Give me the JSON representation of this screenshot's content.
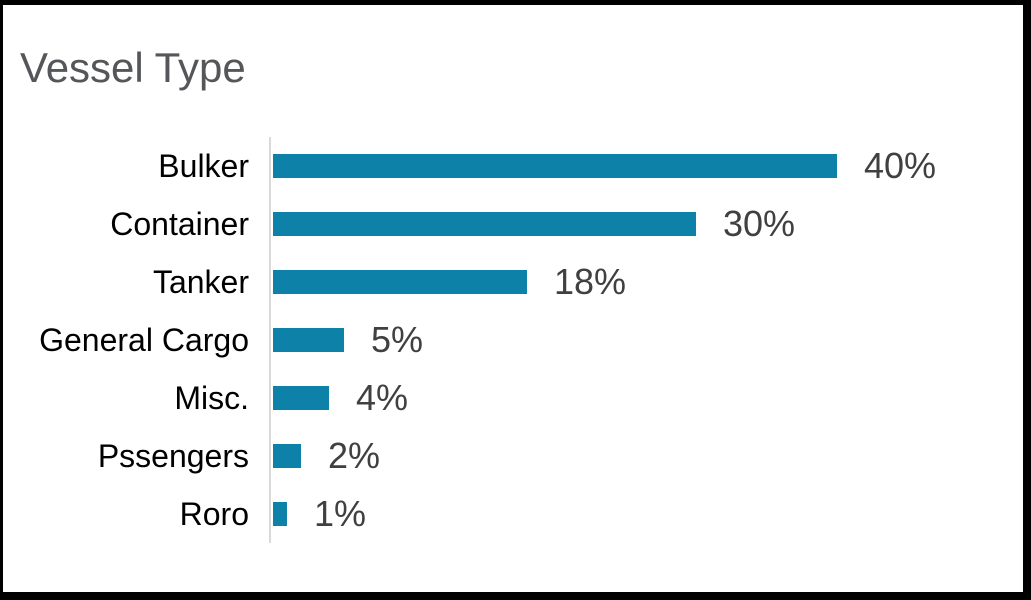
{
  "page": {
    "title": "Vessel Type"
  },
  "chart_data": {
    "type": "bar",
    "orientation": "horizontal",
    "title": "Vessel Type",
    "xlabel": "",
    "ylabel": "",
    "categories": [
      "Bulker",
      "Container",
      "Tanker",
      "General Cargo",
      "Misc.",
      "Pssengers",
      "Roro"
    ],
    "values": [
      40,
      30,
      18,
      5,
      4,
      2,
      1
    ],
    "value_labels": [
      "40%",
      "30%",
      "18%",
      "5%",
      "4%",
      "2%",
      "1%"
    ],
    "unit": "%",
    "xlim": [
      0,
      40
    ],
    "grid": false,
    "legend": false,
    "colors": {
      "bar": "#0e81a8",
      "axis_line": "#d9d9d9",
      "category_label": "#000000",
      "value_label": "#404040",
      "title": "#54565a",
      "background": "#ffffff",
      "frame_border": "#000000"
    }
  }
}
